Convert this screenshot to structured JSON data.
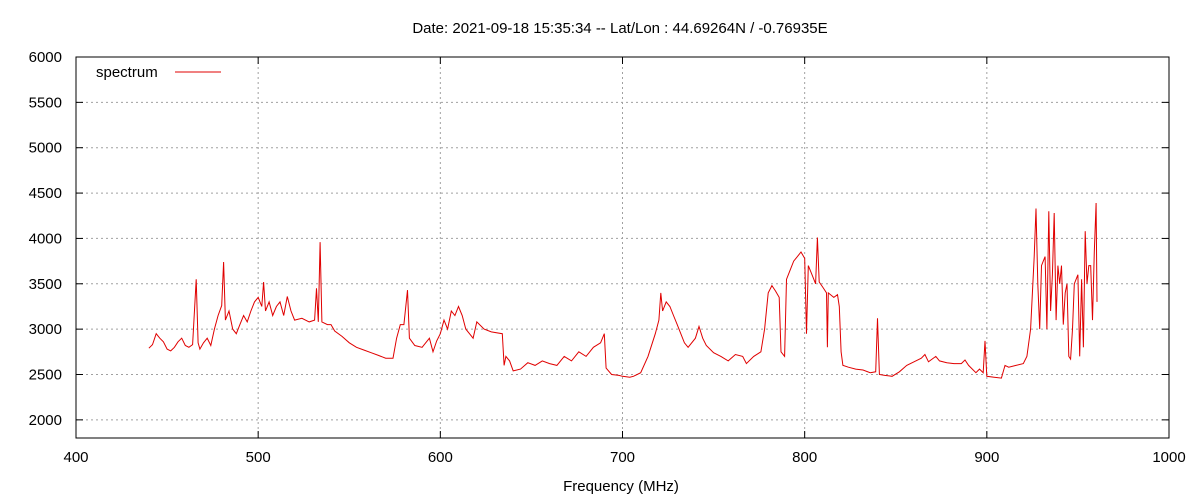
{
  "chart_data": {
    "type": "line",
    "title": "Date: 2021-09-18 15:35:34  --  Lat/Lon : 44.69264N / -0.76935E",
    "xlabel": "Frequency (MHz)",
    "ylabel": "",
    "xlim": [
      400,
      1000
    ],
    "ylim": [
      1800,
      6000
    ],
    "x_ticks": [
      400,
      500,
      600,
      700,
      800,
      900,
      1000
    ],
    "y_ticks": [
      2000,
      2500,
      3000,
      3500,
      4000,
      4500,
      5000,
      5500,
      6000
    ],
    "grid": true,
    "legend_position": "top-left",
    "series": [
      {
        "name": "spectrum",
        "color": "#e00000",
        "points": [
          [
            440,
            2790
          ],
          [
            442,
            2830
          ],
          [
            444,
            2950
          ],
          [
            446,
            2900
          ],
          [
            448,
            2860
          ],
          [
            450,
            2780
          ],
          [
            452,
            2760
          ],
          [
            454,
            2800
          ],
          [
            456,
            2860
          ],
          [
            458,
            2900
          ],
          [
            460,
            2820
          ],
          [
            462,
            2800
          ],
          [
            464,
            2830
          ],
          [
            466,
            3550
          ],
          [
            467,
            2850
          ],
          [
            468,
            2780
          ],
          [
            470,
            2850
          ],
          [
            472,
            2900
          ],
          [
            474,
            2820
          ],
          [
            476,
            3000
          ],
          [
            478,
            3150
          ],
          [
            480,
            3260
          ],
          [
            481,
            3740
          ],
          [
            482,
            3100
          ],
          [
            484,
            3200
          ],
          [
            486,
            3000
          ],
          [
            488,
            2950
          ],
          [
            490,
            3050
          ],
          [
            492,
            3150
          ],
          [
            494,
            3080
          ],
          [
            496,
            3200
          ],
          [
            498,
            3300
          ],
          [
            500,
            3350
          ],
          [
            502,
            3250
          ],
          [
            503,
            3520
          ],
          [
            504,
            3200
          ],
          [
            506,
            3300
          ],
          [
            508,
            3150
          ],
          [
            510,
            3250
          ],
          [
            512,
            3300
          ],
          [
            514,
            3150
          ],
          [
            516,
            3360
          ],
          [
            518,
            3200
          ],
          [
            520,
            3100
          ],
          [
            524,
            3120
          ],
          [
            528,
            3080
          ],
          [
            531,
            3100
          ],
          [
            532,
            3450
          ],
          [
            533,
            3080
          ],
          [
            534,
            3960
          ],
          [
            535,
            3080
          ],
          [
            538,
            3050
          ],
          [
            540,
            3050
          ],
          [
            542,
            2980
          ],
          [
            546,
            2920
          ],
          [
            550,
            2850
          ],
          [
            554,
            2800
          ],
          [
            558,
            2770
          ],
          [
            562,
            2740
          ],
          [
            566,
            2710
          ],
          [
            570,
            2680
          ],
          [
            574,
            2680
          ],
          [
            576,
            2900
          ],
          [
            578,
            3050
          ],
          [
            580,
            3050
          ],
          [
            582,
            3430
          ],
          [
            583,
            2900
          ],
          [
            586,
            2820
          ],
          [
            590,
            2800
          ],
          [
            594,
            2900
          ],
          [
            596,
            2750
          ],
          [
            598,
            2870
          ],
          [
            600,
            2950
          ],
          [
            602,
            3100
          ],
          [
            604,
            3000
          ],
          [
            606,
            3200
          ],
          [
            608,
            3150
          ],
          [
            610,
            3250
          ],
          [
            612,
            3150
          ],
          [
            614,
            3000
          ],
          [
            616,
            2950
          ],
          [
            618,
            2900
          ],
          [
            620,
            3080
          ],
          [
            624,
            3000
          ],
          [
            628,
            2970
          ],
          [
            634,
            2950
          ],
          [
            635,
            2600
          ],
          [
            636,
            2700
          ],
          [
            638,
            2650
          ],
          [
            640,
            2540
          ],
          [
            644,
            2560
          ],
          [
            648,
            2630
          ],
          [
            652,
            2600
          ],
          [
            656,
            2650
          ],
          [
            660,
            2620
          ],
          [
            664,
            2600
          ],
          [
            668,
            2700
          ],
          [
            672,
            2650
          ],
          [
            676,
            2750
          ],
          [
            680,
            2700
          ],
          [
            684,
            2800
          ],
          [
            688,
            2850
          ],
          [
            690,
            2950
          ],
          [
            691,
            2570
          ],
          [
            694,
            2500
          ],
          [
            698,
            2490
          ],
          [
            700,
            2480
          ],
          [
            704,
            2470
          ],
          [
            706,
            2480
          ],
          [
            710,
            2520
          ],
          [
            714,
            2700
          ],
          [
            718,
            2950
          ],
          [
            720,
            3100
          ],
          [
            721,
            3400
          ],
          [
            722,
            3200
          ],
          [
            724,
            3300
          ],
          [
            726,
            3250
          ],
          [
            728,
            3150
          ],
          [
            730,
            3050
          ],
          [
            734,
            2850
          ],
          [
            736,
            2800
          ],
          [
            740,
            2900
          ],
          [
            742,
            3030
          ],
          [
            744,
            2900
          ],
          [
            746,
            2820
          ],
          [
            750,
            2740
          ],
          [
            754,
            2700
          ],
          [
            758,
            2650
          ],
          [
            762,
            2720
          ],
          [
            766,
            2700
          ],
          [
            768,
            2620
          ],
          [
            772,
            2700
          ],
          [
            776,
            2750
          ],
          [
            778,
            3000
          ],
          [
            780,
            3400
          ],
          [
            782,
            3480
          ],
          [
            784,
            3420
          ],
          [
            786,
            3350
          ],
          [
            787,
            2750
          ],
          [
            789,
            2700
          ],
          [
            790,
            3550
          ],
          [
            792,
            3650
          ],
          [
            794,
            3750
          ],
          [
            796,
            3800
          ],
          [
            798,
            3850
          ],
          [
            800,
            3780
          ],
          [
            801,
            2950
          ],
          [
            802,
            3700
          ],
          [
            804,
            3600
          ],
          [
            806,
            3500
          ],
          [
            807,
            4010
          ],
          [
            808,
            3520
          ],
          [
            810,
            3460
          ],
          [
            812,
            3400
          ],
          [
            812.5,
            2800
          ],
          [
            813,
            3400
          ],
          [
            816,
            3350
          ],
          [
            818,
            3380
          ],
          [
            819,
            3250
          ],
          [
            820,
            2750
          ],
          [
            821,
            2600
          ],
          [
            824,
            2580
          ],
          [
            828,
            2560
          ],
          [
            832,
            2550
          ],
          [
            836,
            2520
          ],
          [
            839,
            2530
          ],
          [
            840,
            3120
          ],
          [
            841,
            2500
          ],
          [
            844,
            2490
          ],
          [
            848,
            2480
          ],
          [
            852,
            2530
          ],
          [
            856,
            2600
          ],
          [
            860,
            2640
          ],
          [
            864,
            2680
          ],
          [
            866,
            2720
          ],
          [
            868,
            2640
          ],
          [
            872,
            2700
          ],
          [
            874,
            2650
          ],
          [
            878,
            2630
          ],
          [
            882,
            2620
          ],
          [
            886,
            2620
          ],
          [
            888,
            2660
          ],
          [
            890,
            2600
          ],
          [
            894,
            2520
          ],
          [
            896,
            2560
          ],
          [
            898,
            2520
          ],
          [
            899,
            2870
          ],
          [
            900,
            2480
          ],
          [
            904,
            2470
          ],
          [
            908,
            2460
          ],
          [
            910,
            2600
          ],
          [
            912,
            2580
          ],
          [
            916,
            2600
          ],
          [
            920,
            2620
          ],
          [
            922,
            2700
          ],
          [
            924,
            3000
          ],
          [
            925,
            3400
          ],
          [
            926,
            3800
          ],
          [
            927,
            4330
          ],
          [
            928,
            3500
          ],
          [
            929,
            3000
          ],
          [
            930,
            3700
          ],
          [
            931,
            3750
          ],
          [
            932,
            3800
          ],
          [
            933,
            3000
          ],
          [
            934,
            4300
          ],
          [
            935,
            3200
          ],
          [
            936,
            3600
          ],
          [
            937,
            4280
          ],
          [
            938,
            3100
          ],
          [
            939,
            3700
          ],
          [
            940,
            3500
          ],
          [
            941,
            3700
          ],
          [
            942,
            3050
          ],
          [
            943,
            3400
          ],
          [
            944,
            3500
          ],
          [
            945,
            2700
          ],
          [
            946,
            2670
          ],
          [
            947,
            3000
          ],
          [
            948,
            3500
          ],
          [
            949,
            3550
          ],
          [
            950,
            3600
          ],
          [
            951,
            2700
          ],
          [
            952,
            3550
          ],
          [
            953,
            2800
          ],
          [
            954,
            4080
          ],
          [
            955,
            3500
          ],
          [
            956,
            3700
          ],
          [
            957,
            3700
          ],
          [
            958,
            3100
          ],
          [
            959,
            3850
          ],
          [
            960,
            4390
          ],
          [
            960.5,
            3300
          ]
        ]
      }
    ]
  }
}
